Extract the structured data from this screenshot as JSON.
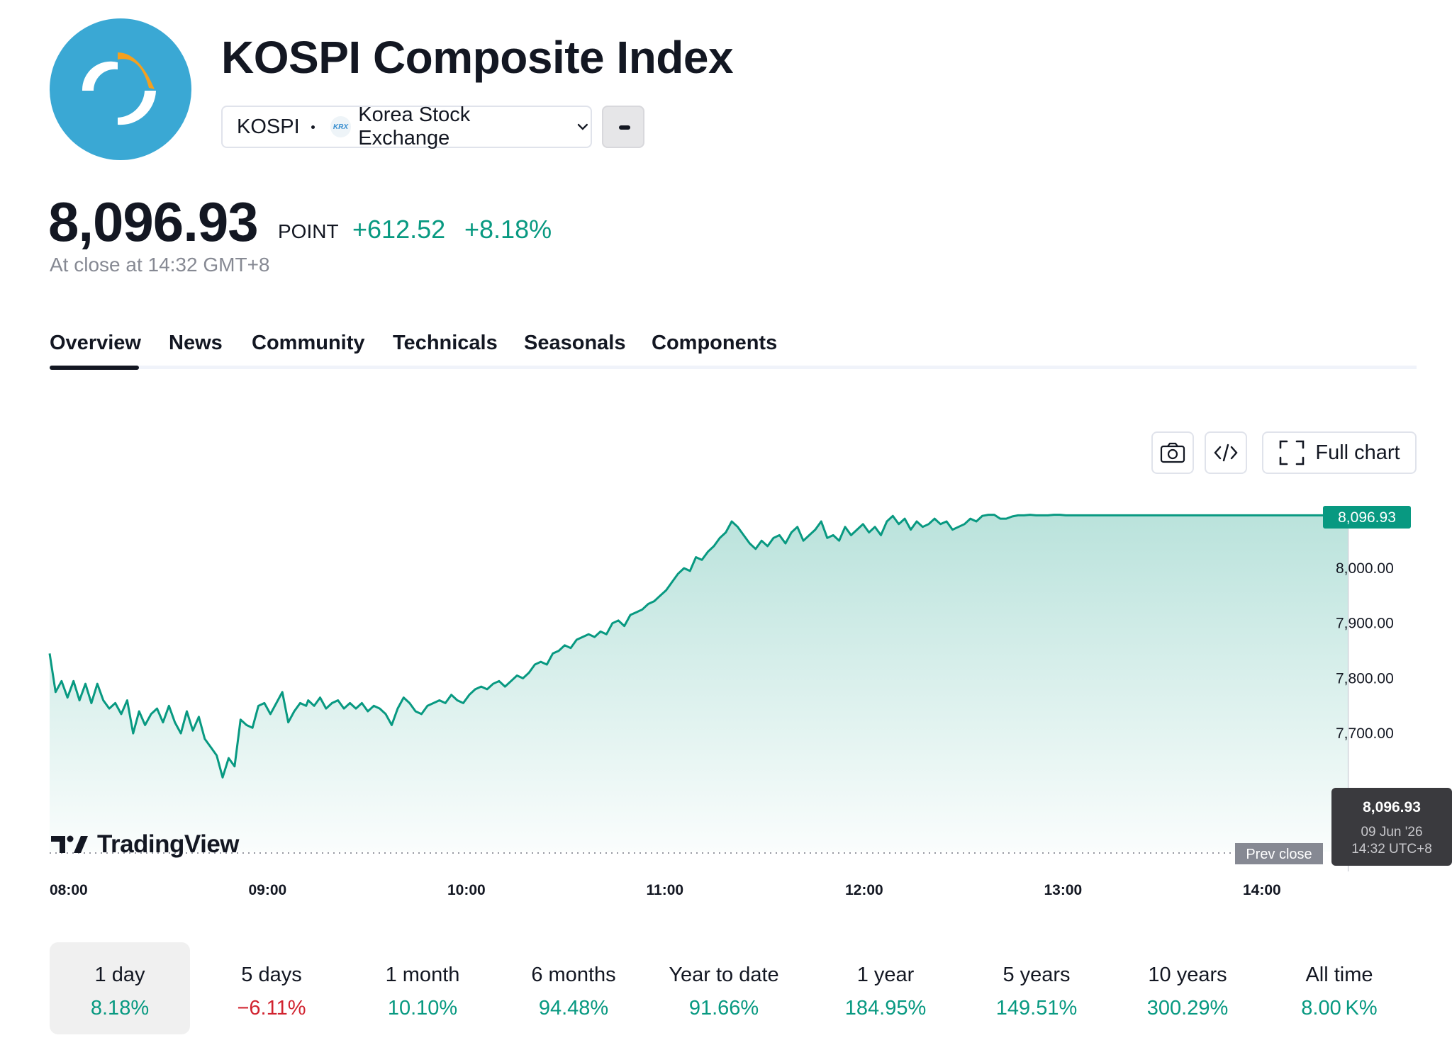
{
  "header": {
    "title": "KOSPI Composite Index",
    "ticker": "KOSPI",
    "exchange": "Korea Stock Exchange",
    "exchange_badge": "KRX"
  },
  "quote": {
    "price": "8,096.93",
    "unit": "POINT",
    "change": "+612.52",
    "change_pct": "+8.18%",
    "close_time": "At close at 14:32 GMT+8",
    "positive_color": "#089981",
    "negative_color": "#d1232f"
  },
  "tabs": [
    {
      "label": "Overview",
      "active": true
    },
    {
      "label": "News"
    },
    {
      "label": "Community"
    },
    {
      "label": "Technicals"
    },
    {
      "label": "Seasonals"
    },
    {
      "label": "Components"
    }
  ],
  "toolbar": {
    "full_chart_label": "Full chart",
    "screenshot_icon": "camera-icon",
    "embed_icon": "code-icon",
    "fullscreen_icon": "expand-icon"
  },
  "chart_data": {
    "type": "area",
    "x_tick_labels": [
      "08:00",
      "09:00",
      "10:00",
      "11:00",
      "12:00",
      "13:00",
      "14:00"
    ],
    "y_tick_labels": [
      "8,000.00",
      "7,900.00",
      "7,800.00",
      "7,700.00"
    ],
    "ylim": [
      7590,
      8130
    ],
    "last_price_label": "8,096.93",
    "prev_close_label": "Prev close",
    "tooltip": {
      "value": "8,096.93",
      "date": "09 Jun '26",
      "time": "14:32 UTC+8"
    },
    "watermark": "TradingView",
    "line_color": "#089981",
    "x_unit": "hours since 08:00",
    "series": [
      {
        "x": [
          0,
          0.03,
          0.06,
          0.09,
          0.12,
          0.15,
          0.18,
          0.21,
          0.24,
          0.27,
          0.3,
          0.33,
          0.36,
          0.39,
          0.42,
          0.45,
          0.48,
          0.51,
          0.54,
          0.57,
          0.6,
          0.63,
          0.66,
          0.69,
          0.72,
          0.75,
          0.78,
          0.81,
          0.84,
          0.87,
          0.9,
          0.93,
          0.96,
          0.99,
          1.02,
          1.05,
          1.08,
          1.11,
          1.14,
          1.17,
          1.2,
          1.23,
          1.26,
          1.29,
          1.3,
          1.33,
          1.36,
          1.39,
          1.42,
          1.45,
          1.48,
          1.51,
          1.54,
          1.57,
          1.6,
          1.63,
          1.66,
          1.69,
          1.72,
          1.75,
          1.78,
          1.81,
          1.84,
          1.87,
          1.9,
          1.93,
          1.96,
          1.99,
          2.02,
          2.05,
          2.08,
          2.11,
          2.14,
          2.17,
          2.2,
          2.23,
          2.26,
          2.29,
          2.32,
          2.35,
          2.38,
          2.41,
          2.44,
          2.47,
          2.5,
          2.53,
          2.56,
          2.59,
          2.62,
          2.65,
          2.68,
          2.71,
          2.74,
          2.77,
          2.8,
          2.83,
          2.86,
          2.89,
          2.92,
          2.95,
          2.98,
          3.01,
          3.04,
          3.07,
          3.1,
          3.13,
          3.16,
          3.19,
          3.22,
          3.25,
          3.28,
          3.31,
          3.34,
          3.37,
          3.4,
          3.43,
          3.46,
          3.49,
          3.52,
          3.55,
          3.58,
          3.61,
          3.64,
          3.67,
          3.7,
          3.73,
          3.76,
          3.79,
          3.82,
          3.85,
          3.88,
          3.91,
          3.94,
          3.97,
          4.0,
          4.03,
          4.06,
          4.09,
          4.12,
          4.15,
          4.18,
          4.21,
          4.24,
          4.27,
          4.3,
          4.33,
          4.36,
          4.39,
          4.42,
          4.45,
          4.48,
          4.51,
          4.54,
          4.57,
          4.6,
          4.63,
          4.66,
          4.69,
          4.72,
          4.75,
          4.78,
          4.81,
          4.84,
          4.87,
          4.9,
          4.93,
          4.96,
          4.99,
          5.02,
          5.05,
          5.08,
          5.11,
          5.14,
          5.17,
          5.2,
          5.23,
          5.26,
          5.29,
          5.32,
          5.35,
          5.38,
          5.41,
          5.44,
          5.47,
          5.5,
          5.53,
          5.56,
          5.59,
          5.62,
          5.65,
          5.68,
          5.71,
          5.74,
          5.77,
          5.8,
          5.83,
          5.86,
          5.89,
          5.92,
          5.95,
          5.98,
          6.01,
          6.04,
          6.07,
          6.1,
          6.13,
          6.16,
          6.19,
          6.22,
          6.25,
          6.28,
          6.31,
          6.34,
          6.37,
          6.4,
          6.43,
          6.46,
          6.49,
          6.53
        ],
        "values": [
          7845,
          7775,
          7795,
          7765,
          7795,
          7760,
          7790,
          7755,
          7790,
          7760,
          7745,
          7755,
          7735,
          7760,
          7700,
          7740,
          7715,
          7735,
          7745,
          7720,
          7750,
          7720,
          7700,
          7740,
          7705,
          7730,
          7690,
          7675,
          7660,
          7620,
          7655,
          7640,
          7725,
          7715,
          7710,
          7750,
          7755,
          7735,
          7755,
          7775,
          7720,
          7740,
          7755,
          7750,
          7760,
          7750,
          7765,
          7745,
          7755,
          7760,
          7745,
          7755,
          7745,
          7755,
          7740,
          7750,
          7745,
          7735,
          7715,
          7745,
          7765,
          7755,
          7740,
          7735,
          7750,
          7755,
          7760,
          7755,
          7770,
          7760,
          7755,
          7770,
          7780,
          7785,
          7780,
          7790,
          7795,
          7785,
          7795,
          7805,
          7800,
          7810,
          7825,
          7830,
          7825,
          7845,
          7850,
          7860,
          7855,
          7870,
          7875,
          7880,
          7875,
          7885,
          7880,
          7900,
          7905,
          7895,
          7915,
          7920,
          7925,
          7935,
          7940,
          7950,
          7960,
          7975,
          7990,
          8000,
          7995,
          8020,
          8015,
          8030,
          8040,
          8055,
          8065,
          8085,
          8075,
          8060,
          8045,
          8035,
          8050,
          8040,
          8055,
          8060,
          8045,
          8065,
          8075,
          8050,
          8060,
          8070,
          8085,
          8055,
          8060,
          8050,
          8075,
          8060,
          8070,
          8080,
          8065,
          8075,
          8060,
          8085,
          8095,
          8080,
          8090,
          8070,
          8085,
          8075,
          8080,
          8090,
          8080,
          8085,
          8070,
          8075,
          8080,
          8090,
          8085,
          8095,
          8097,
          8097,
          8090,
          8090,
          8094,
          8096,
          8096,
          8097,
          8096,
          8096,
          8096,
          8097,
          8097,
          8096,
          8096,
          8096,
          8096,
          8096,
          8096,
          8096,
          8096,
          8096,
          8096,
          8096,
          8096,
          8096,
          8096,
          8096,
          8096,
          8096,
          8096,
          8096,
          8096,
          8096,
          8096,
          8096,
          8096,
          8096,
          8096,
          8096,
          8096,
          8096,
          8096,
          8096,
          8096,
          8096,
          8096,
          8096,
          8096,
          8096,
          8096,
          8096,
          8096,
          8096,
          8096,
          8096,
          8096,
          8096,
          8096,
          8096,
          8096
        ]
      }
    ]
  },
  "periods": [
    {
      "label": "1 day",
      "value": "8.18%",
      "sign": "pos",
      "active": true
    },
    {
      "label": "5 days",
      "value": "−6.11%",
      "sign": "neg"
    },
    {
      "label": "1 month",
      "value": "10.10%",
      "sign": "pos"
    },
    {
      "label": "6 months",
      "value": "94.48%",
      "sign": "pos"
    },
    {
      "label": "Year to date",
      "value": "91.66%",
      "sign": "pos"
    },
    {
      "label": "1 year",
      "value": "184.95%",
      "sign": "pos"
    },
    {
      "label": "5 years",
      "value": "149.51%",
      "sign": "pos"
    },
    {
      "label": "10 years",
      "value": "300.29%",
      "sign": "pos"
    },
    {
      "label": "All time",
      "value": "8.00 K%",
      "sign": "pos"
    }
  ]
}
